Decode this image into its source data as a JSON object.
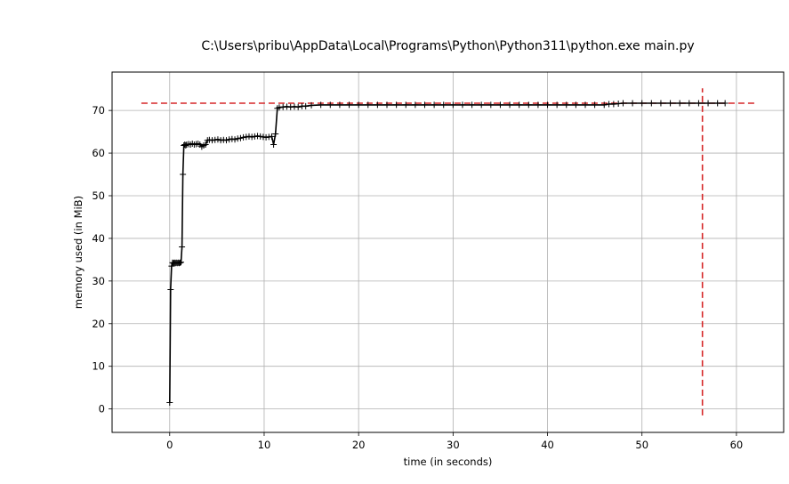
{
  "chart_data": {
    "type": "line",
    "title": "C:\\Users\\pribu\\AppData\\Local\\Programs\\Python\\Python311\\python.exe main.py",
    "xlabel": "time (in seconds)",
    "ylabel": "memory used (in MiB)",
    "xlim": [
      -6.1,
      65
    ],
    "ylim": [
      -5.5,
      79
    ],
    "xticks": [
      0,
      10,
      20,
      30,
      40,
      50,
      60
    ],
    "yticks": [
      0,
      10,
      20,
      30,
      40,
      50,
      60,
      70
    ],
    "grid": true,
    "series": [
      {
        "marker": "+",
        "color": "#000000",
        "x": [
          0.0,
          0.1,
          0.2,
          0.3,
          0.4,
          0.5,
          0.6,
          0.7,
          0.8,
          0.9,
          1.0,
          1.1,
          1.2,
          1.3,
          1.4,
          1.5,
          1.6,
          1.7,
          1.8,
          2.0,
          2.2,
          2.4,
          2.6,
          2.8,
          3.0,
          3.2,
          3.4,
          3.6,
          3.8,
          4.0,
          4.2,
          4.5,
          4.8,
          5.1,
          5.4,
          5.7,
          6.0,
          6.3,
          6.6,
          6.9,
          7.2,
          7.5,
          7.8,
          8.1,
          8.4,
          8.7,
          9.0,
          9.3,
          9.6,
          9.9,
          10.2,
          10.5,
          10.8,
          11.0,
          11.2,
          11.4,
          11.6,
          12.0,
          12.4,
          12.8,
          13.2,
          13.6,
          14.0,
          14.4,
          15.0,
          16.0,
          17.0,
          18.0,
          19.0,
          20.0,
          21.0,
          22.0,
          23.0,
          24.0,
          25.0,
          26.0,
          27.0,
          28.0,
          29.0,
          30.0,
          31.0,
          32.0,
          33.0,
          34.0,
          35.0,
          36.0,
          37.0,
          38.0,
          39.0,
          40.0,
          41.0,
          42.0,
          43.0,
          44.0,
          45.0,
          46.0,
          46.5,
          47.0,
          47.5,
          48.0,
          49.0,
          50.0,
          51.0,
          52.0,
          53.0,
          54.0,
          55.0,
          56.0,
          57.0,
          58.0,
          58.8
        ],
        "y": [
          1.5,
          28.0,
          33.5,
          34.3,
          34.2,
          34.3,
          34.2,
          34.3,
          34.2,
          34.3,
          34.2,
          34.3,
          34.4,
          38.0,
          55.0,
          61.8,
          62.0,
          61.8,
          62.0,
          62.1,
          62.0,
          62.2,
          62.0,
          62.1,
          62.2,
          62.0,
          61.5,
          61.8,
          62.0,
          63.0,
          63.1,
          63.0,
          63.1,
          63.2,
          63.0,
          63.1,
          63.0,
          63.2,
          63.3,
          63.2,
          63.4,
          63.5,
          63.7,
          63.8,
          63.9,
          63.8,
          63.9,
          64.0,
          63.9,
          63.8,
          63.7,
          63.8,
          63.9,
          62.0,
          64.5,
          70.5,
          70.7,
          70.8,
          70.9,
          70.8,
          70.9,
          70.8,
          71.0,
          71.0,
          71.2,
          71.3,
          71.3,
          71.3,
          71.3,
          71.3,
          71.3,
          71.3,
          71.3,
          71.3,
          71.3,
          71.3,
          71.3,
          71.3,
          71.3,
          71.3,
          71.3,
          71.3,
          71.3,
          71.3,
          71.3,
          71.3,
          71.3,
          71.3,
          71.3,
          71.3,
          71.3,
          71.3,
          71.3,
          71.3,
          71.3,
          71.3,
          71.5,
          71.5,
          71.6,
          71.7,
          71.7,
          71.7,
          71.7,
          71.7,
          71.7,
          71.7,
          71.7,
          71.7,
          71.7,
          71.7,
          71.7
        ]
      }
    ],
    "reference_lines": [
      {
        "orientation": "horizontal",
        "y": 71.7,
        "x_from": -3.0,
        "x_to": 62.0,
        "color": "#d62728",
        "style": "dashed"
      },
      {
        "orientation": "vertical",
        "x": 56.4,
        "y_from": -1.5,
        "y_to": 75.2,
        "color": "#d62728",
        "style": "dashed"
      }
    ]
  }
}
